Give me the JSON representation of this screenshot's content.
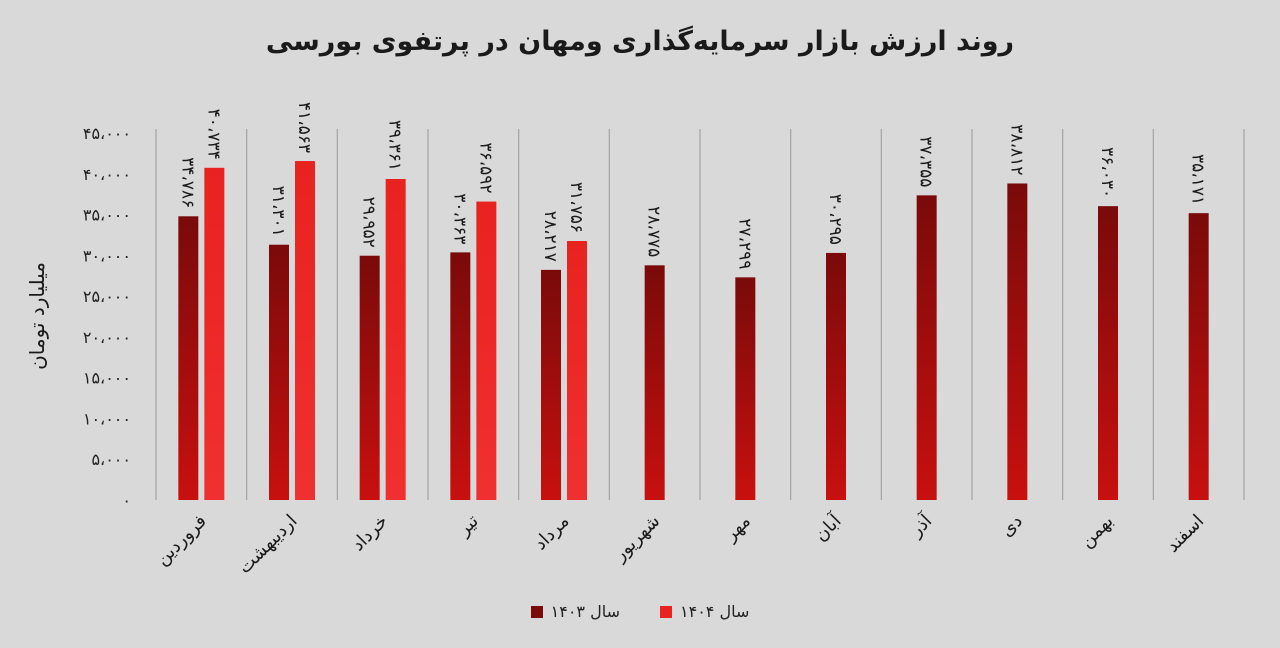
{
  "chart_data": {
    "type": "bar",
    "title": "روند ارزش بازار سرمایه‌گذاری ومهان در پرتفوی بورسی",
    "ylabel": "میلیارد تومان",
    "xlabel": "",
    "ylim": [
      0,
      45000
    ],
    "y_ticks": [
      "۰",
      "۵،۰۰۰",
      "۱۰،۰۰۰",
      "۱۵،۰۰۰",
      "۲۰،۰۰۰",
      "۲۵،۰۰۰",
      "۳۰،۰۰۰",
      "۳۵،۰۰۰",
      "۴۰،۰۰۰",
      "۴۵،۰۰۰"
    ],
    "y_tick_values": [
      0,
      5000,
      10000,
      15000,
      20000,
      25000,
      30000,
      35000,
      40000,
      45000
    ],
    "grid": "vertical category separators",
    "legend_position": "bottom",
    "categories": [
      "فروردین",
      "اردیبهشت",
      "خرداد",
      "تیر",
      "مرداد",
      "شهریور",
      "مهر",
      "آبان",
      "آذر",
      "دی",
      "بهمن",
      "اسفند"
    ],
    "series": [
      {
        "name": "سال ۱۴۰۳",
        "color_top": "#7a0a0a",
        "color_bottom": "#c8100f",
        "values": [
          34786,
          31301,
          29952,
          30363,
          28217,
          28775,
          27299,
          30295,
          37355,
          38812,
          36030,
          35171
        ],
        "labels": [
          "۳۴،۷۸۶",
          "۳۱،۳۰۱",
          "۲۹،۹۵۲",
          "۳۰،۳۶۳",
          "۲۸،۲۱۷",
          "۲۸،۷۷۵",
          "۲۷،۲۹۹",
          "۳۰،۲۹۵",
          "۳۷،۳۵۵",
          "۳۸،۸۱۲",
          "۳۶،۰۳۰",
          "۳۵،۱۷۱"
        ]
      },
      {
        "name": "سال ۱۴۰۴",
        "color_top": "#e8221f",
        "color_bottom": "#f03030",
        "values": [
          40734,
          41563,
          39361,
          36592,
          31756,
          null,
          null,
          null,
          null,
          null,
          null,
          null
        ],
        "labels": [
          "۴۰،۷۳۴",
          "۴۱،۵۶۳",
          "۳۹،۳۶۱",
          "۳۶،۵۹۲",
          "۳۱،۷۵۶",
          null,
          null,
          null,
          null,
          null,
          null,
          null
        ]
      }
    ]
  }
}
